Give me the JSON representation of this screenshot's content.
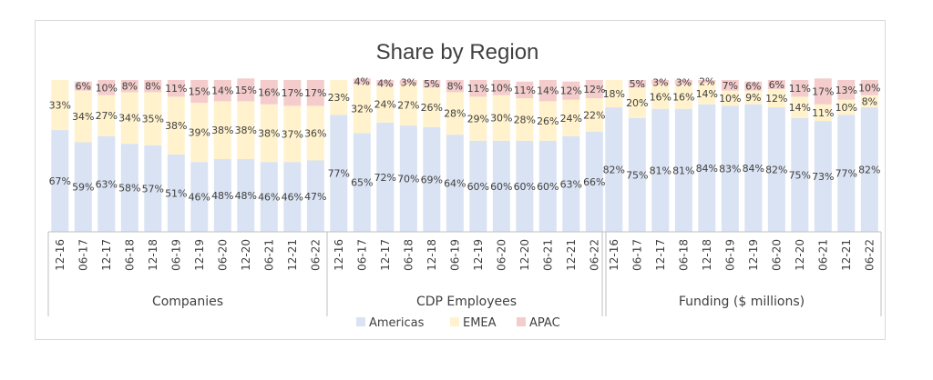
{
  "chart_data": {
    "type": "bar",
    "stacked": "100%",
    "title": "Share by Region",
    "categories": [
      "12-16",
      "06-17",
      "12-17",
      "06-18",
      "12-18",
      "06-19",
      "12-19",
      "06-20",
      "12-20",
      "06-21",
      "12-21",
      "06-22"
    ],
    "groups": [
      {
        "name": "Companies",
        "series": [
          {
            "name": "Americas",
            "values": [
              67,
              59,
              63,
              58,
              57,
              51,
              46,
              48,
              48,
              46,
              46,
              47
            ]
          },
          {
            "name": "EMEA",
            "values": [
              33,
              34,
              27,
              34,
              35,
              38,
              39,
              38,
              38,
              38,
              37,
              36
            ]
          },
          {
            "name": "APAC",
            "values": [
              0,
              6,
              10,
              8,
              8,
              11,
              15,
              14,
              15,
              16,
              17,
              17
            ]
          }
        ]
      },
      {
        "name": "CDP Employees",
        "series": [
          {
            "name": "Americas",
            "values": [
              77,
              65,
              72,
              70,
              69,
              64,
              60,
              60,
              60,
              60,
              63,
              66
            ]
          },
          {
            "name": "EMEA",
            "values": [
              23,
              32,
              24,
              27,
              26,
              28,
              29,
              30,
              28,
              26,
              24,
              22
            ]
          },
          {
            "name": "APAC",
            "values": [
              0,
              4,
              4,
              3,
              5,
              8,
              11,
              10,
              11,
              14,
              12,
              12
            ]
          }
        ]
      },
      {
        "name": "Funding ($ millions)",
        "series": [
          {
            "name": "Americas",
            "values": [
              82,
              75,
              81,
              81,
              84,
              83,
              84,
              82,
              75,
              73,
              77,
              82
            ]
          },
          {
            "name": "EMEA",
            "values": [
              18,
              20,
              16,
              16,
              14,
              10,
              9,
              12,
              14,
              11,
              10,
              8
            ]
          },
          {
            "name": "APAC",
            "values": [
              0,
              5,
              3,
              3,
              2,
              7,
              6,
              6,
              11,
              17,
              13,
              10
            ]
          }
        ]
      }
    ],
    "legend": {
      "position": "bottom",
      "entries": [
        "Americas",
        "EMEA",
        "APAC"
      ]
    },
    "colors": {
      "Americas": "#dae3f3",
      "EMEA": "#fff2cc",
      "APAC": "#f4cccc"
    },
    "ylim": [
      0,
      100
    ],
    "grid": false
  }
}
